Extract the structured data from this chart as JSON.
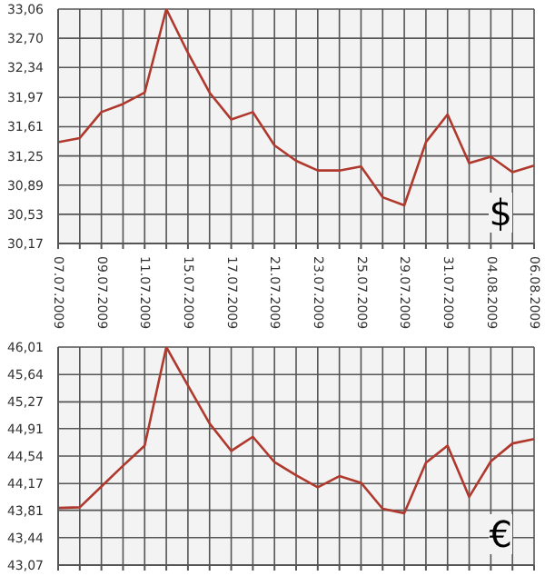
{
  "chart_data": [
    {
      "type": "line",
      "categories": [
        "07.07.2009",
        null,
        "09.07.2009",
        null,
        "11.07.2009",
        null,
        "15.07.2009",
        null,
        "17.07.2009",
        null,
        "21.07.2009",
        null,
        "23.07.2009",
        null,
        "25.07.2009",
        null,
        "29.07.2009",
        null,
        "31.07.2009",
        null,
        "04.08.2009",
        null,
        "06.08.2009"
      ],
      "values": [
        31.42,
        31.47,
        31.79,
        31.89,
        32.03,
        33.06,
        32.52,
        32.03,
        31.7,
        31.79,
        31.38,
        31.19,
        31.07,
        31.07,
        31.12,
        30.74,
        30.64,
        31.42,
        31.76,
        31.16,
        31.24,
        31.05,
        31.13
      ],
      "color": "#b0392e",
      "ylim": [
        30.17,
        33.06
      ],
      "yticks": [
        {
          "value": 30.17,
          "label": "30,17"
        },
        {
          "value": 30.53,
          "label": "30,53"
        },
        {
          "value": 30.89,
          "label": "30,89"
        },
        {
          "value": 31.25,
          "label": "31,25"
        },
        {
          "value": 31.61,
          "label": "31,61"
        },
        {
          "value": 31.97,
          "label": "31,97"
        },
        {
          "value": 32.34,
          "label": "32,34"
        },
        {
          "value": 32.7,
          "label": "32,70"
        },
        {
          "value": 33.06,
          "label": "33,06"
        }
      ],
      "grid": true,
      "marker": "none",
      "annotations": [
        "$"
      ]
    },
    {
      "type": "line",
      "categories": [
        "07.07.2009",
        null,
        "09.07.2009",
        null,
        "11.07.2009",
        null,
        "15.07.2009",
        null,
        "17.07.2009",
        null,
        "21.07.2009",
        null,
        "23.07.2009",
        null,
        "25.07.2009",
        null,
        "29.07.2009",
        null,
        "31.07.2009",
        null,
        "04.08.2009",
        null,
        "06.08.2009"
      ],
      "values": [
        43.84,
        43.85,
        44.13,
        44.41,
        44.68,
        46.01,
        45.49,
        44.98,
        44.61,
        44.8,
        44.46,
        44.28,
        44.12,
        44.27,
        44.18,
        43.83,
        43.77,
        44.45,
        44.68,
        43.99,
        44.47,
        44.71,
        44.77
      ],
      "color": "#b0392e",
      "ylim": [
        43.07,
        46.01
      ],
      "yticks": [
        {
          "value": 43.07,
          "label": "43,07"
        },
        {
          "value": 43.44,
          "label": "43,44"
        },
        {
          "value": 43.81,
          "label": "43,81"
        },
        {
          "value": 44.17,
          "label": "44,17"
        },
        {
          "value": 44.54,
          "label": "44,54"
        },
        {
          "value": 44.91,
          "label": "44,91"
        },
        {
          "value": 45.27,
          "label": "45,27"
        },
        {
          "value": 45.64,
          "label": "45,64"
        },
        {
          "value": 46.01,
          "label": "46,01"
        }
      ],
      "grid": true,
      "marker": "none",
      "tick_labels": "y",
      "annotations": [
        "€"
      ]
    }
  ]
}
